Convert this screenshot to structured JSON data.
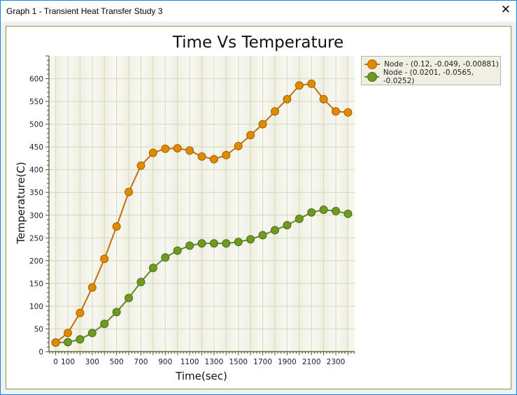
{
  "window": {
    "title": "Graph 1 - Transient Heat Transfer Study 3",
    "close_icon": "close-icon"
  },
  "chart_data": {
    "type": "line",
    "title": "Time Vs Temperature",
    "xlabel": "Time(sec)",
    "ylabel": "Temperature(C)",
    "x": [
      0,
      100,
      200,
      300,
      400,
      500,
      600,
      700,
      800,
      900,
      1000,
      1100,
      1200,
      1300,
      1400,
      1500,
      1600,
      1700,
      1800,
      1900,
      2000,
      2100,
      2200,
      2300,
      2400
    ],
    "series": [
      {
        "name": "Node - (0.12, -0.049, -0.00881)",
        "color": "#e08a00",
        "line_color": "#c07008",
        "values": [
          20,
          41,
          85,
          141,
          204,
          275,
          351,
          409,
          437,
          446,
          447,
          442,
          429,
          423,
          432,
          452,
          476,
          500,
          528,
          555,
          585,
          589,
          555,
          528,
          526
        ]
      },
      {
        "name": "Node - (0.0201, -0.0565, -0.0252)",
        "color": "#6f9a22",
        "line_color": "#5e8a2a",
        "values": [
          20,
          21,
          27,
          41,
          61,
          87,
          118,
          153,
          184,
          207,
          222,
          233,
          238,
          238,
          238,
          241,
          247,
          256,
          267,
          278,
          292,
          306,
          312,
          309,
          303
        ]
      }
    ],
    "xticks": [
      "0",
      "100",
      "300",
      "500",
      "700",
      "900",
      "1100",
      "1300",
      "1500",
      "1700",
      "1900",
      "2100",
      "2300"
    ],
    "yticks": [
      "0",
      "50",
      "100",
      "150",
      "200",
      "250",
      "300",
      "350",
      "400",
      "450",
      "500",
      "550",
      "600"
    ],
    "xlim": [
      -55,
      2455
    ],
    "ylim": [
      0,
      650
    ],
    "grid": true,
    "legend": "top-right, outside plot"
  }
}
